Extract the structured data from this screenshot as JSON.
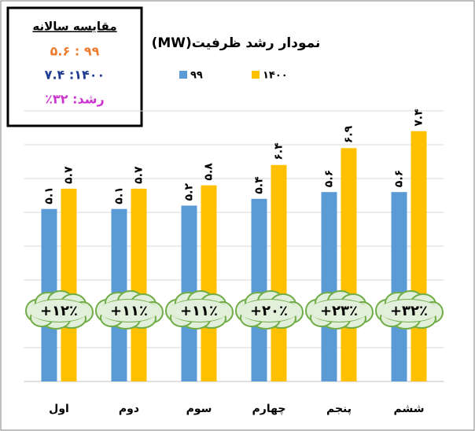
{
  "chart_data": {
    "type": "bar",
    "title": "نمودار رشد ظرفیت(MW)",
    "categories": [
      "اول",
      "دوم",
      "سوم",
      "چهارم",
      "پنجم",
      "ششم"
    ],
    "series": [
      {
        "name": "۹۹",
        "color": "#5b9bd5",
        "values": [
          5.1,
          5.1,
          5.2,
          5.4,
          5.6,
          5.6
        ],
        "value_labels": [
          "۵.۱",
          "۵.۱",
          "۵.۲",
          "۵.۴",
          "۵.۶",
          "۵.۶"
        ]
      },
      {
        "name": "۱۴۰۰",
        "color": "#ffc000",
        "values": [
          5.7,
          5.7,
          5.8,
          6.4,
          6.9,
          7.4
        ],
        "value_labels": [
          "۵.۷",
          "۵.۷",
          "۵.۸",
          "۶.۴",
          "۶.۹",
          "۷.۴"
        ]
      }
    ],
    "annotations": [
      "+۱۲٪",
      "+۱۱٪",
      "+۱۱٪",
      "+۲۰٪",
      "+۲۳٪",
      "+۳۲٪"
    ],
    "ylim": [
      0,
      8
    ],
    "yticks": [
      0,
      1,
      2,
      3,
      4,
      5,
      6,
      7,
      8
    ],
    "grid": true,
    "summary_box": {
      "title": "مقایسه سالانه",
      "lines": [
        "۹۹ : ۵.۶",
        "۱۴۰۰: ۷.۴",
        "رشد: ۳۲٪"
      ]
    }
  }
}
